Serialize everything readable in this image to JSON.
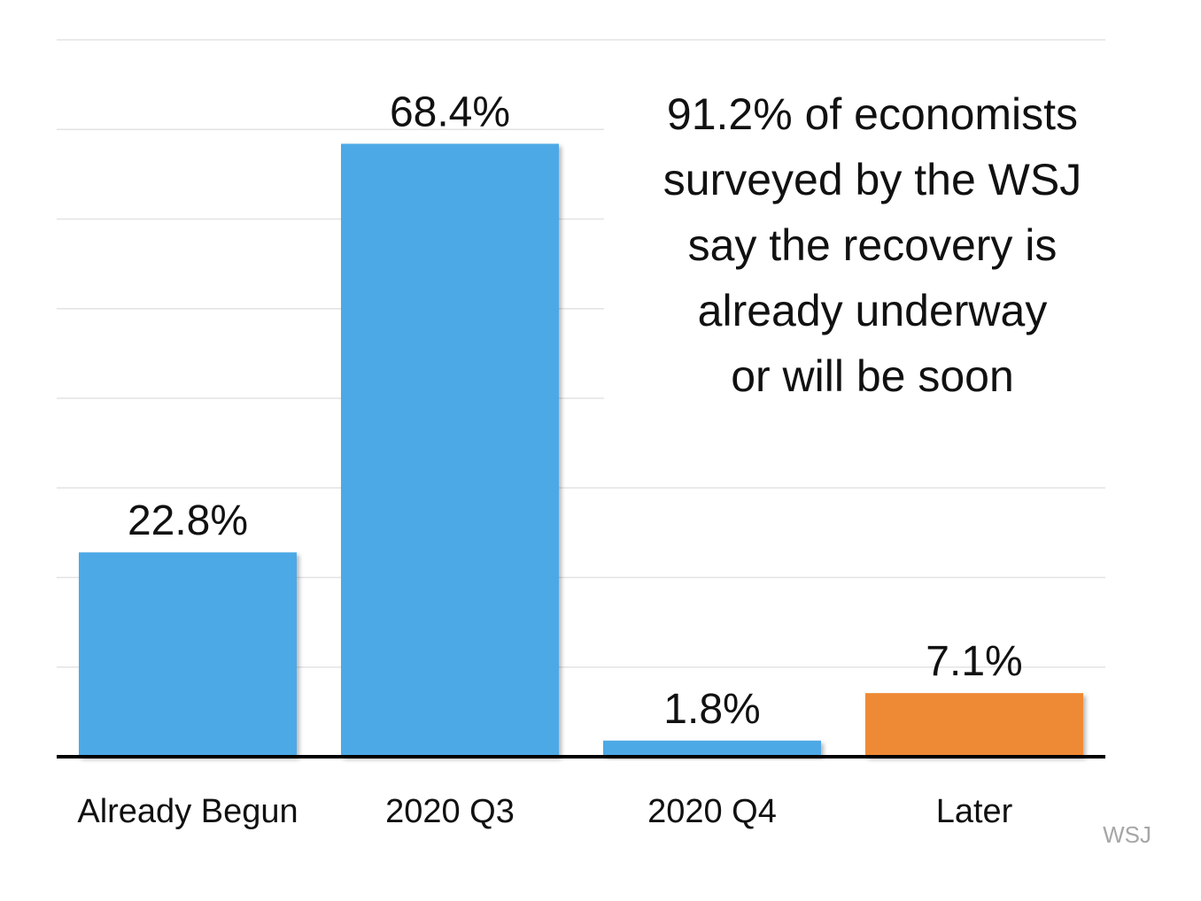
{
  "chart_data": {
    "type": "bar",
    "categories": [
      "Already Begun",
      "2020 Q3",
      "2020 Q4",
      "Later"
    ],
    "values": [
      22.8,
      68.4,
      1.8,
      7.1
    ],
    "data_labels": [
      "22.8%",
      "68.4%",
      "1.8%",
      "7.1%"
    ],
    "colors": [
      "#4DA9E6",
      "#4DA9E6",
      "#4DA9E6",
      "#EE8A35"
    ],
    "ylim": [
      0,
      80
    ],
    "grid": true,
    "annotation": "91.2% of economists\nsurveyed by the WSJ\nsay the recovery is\nalready underway\nor will be soon",
    "source": "WSJ"
  }
}
